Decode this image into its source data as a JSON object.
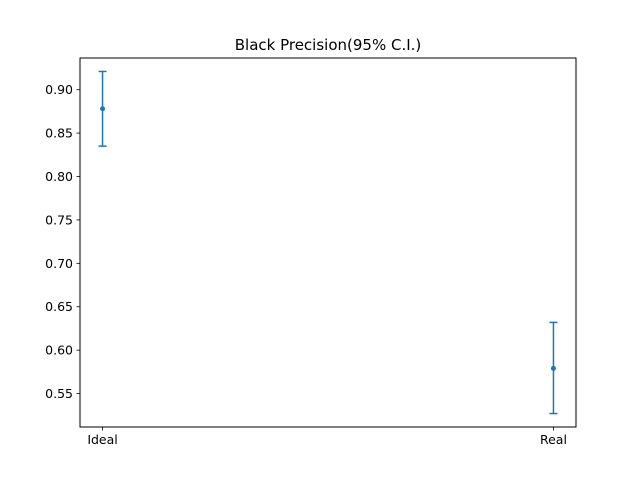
{
  "chart_data": {
    "type": "errorbar",
    "title": "Black Precision(95% C.I.)",
    "xlabel": "",
    "ylabel": "",
    "categories": [
      "Ideal",
      "Real"
    ],
    "series": [
      {
        "points": [
          {
            "x": "Ideal",
            "y": 0.878,
            "lower": 0.835,
            "upper": 0.921
          },
          {
            "x": "Real",
            "y": 0.579,
            "lower": 0.527,
            "upper": 0.632
          }
        ],
        "color": "#1f77b4"
      }
    ],
    "ylim": [
      0.5115,
      0.9365
    ],
    "yticks": [
      "0.55",
      "0.60",
      "0.65",
      "0.70",
      "0.75",
      "0.80",
      "0.85",
      "0.90"
    ],
    "grid": false
  }
}
